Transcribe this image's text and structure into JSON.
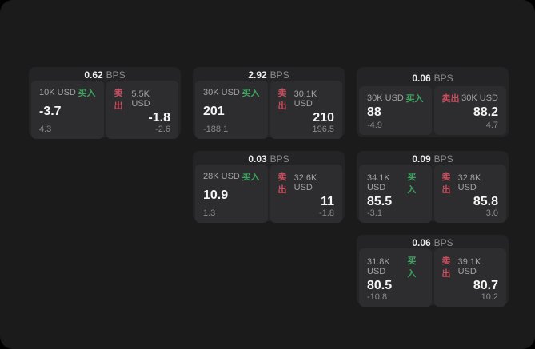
{
  "colors": {
    "buy_green": "#3da35f",
    "sell_red": "#c94f5f",
    "panel_bg": "#1b1b1c",
    "card_bg": "#242426",
    "subpanel_bg": "#2d2d2f"
  },
  "cards": [
    {
      "bps_value": "0.62",
      "bps_unit": "BPS",
      "buy": {
        "size": "10K USD",
        "label": "买入",
        "price": "-3.7",
        "change": "4.3"
      },
      "sell": {
        "label": "卖出",
        "size": "5.5K USD",
        "price": "-1.8",
        "change": "-2.6"
      }
    },
    {
      "bps_value": "2.92",
      "bps_unit": "BPS",
      "buy": {
        "size": "30K USD",
        "label": "买入",
        "price": "201",
        "change": "-188.1"
      },
      "sell": {
        "label": "卖出",
        "size": "30.1K USD",
        "price": "210",
        "change": "196.5"
      }
    },
    {
      "bps_value": "0.06",
      "bps_unit": "BPS",
      "buy": {
        "size": "30K USD",
        "label": "买入",
        "price": "88",
        "change": "-4.9"
      },
      "sell": {
        "label": "卖出",
        "size": "30K USD",
        "price": "88.2",
        "change": "4.7"
      }
    },
    {
      "bps_value": "0.03",
      "bps_unit": "BPS",
      "buy": {
        "size": "28K USD",
        "label": "买入",
        "price": "10.9",
        "change": "1.3"
      },
      "sell": {
        "label": "卖出",
        "size": "32.6K USD",
        "price": "11",
        "change": "-1.8"
      }
    },
    {
      "bps_value": "0.09",
      "bps_unit": "BPS",
      "buy": {
        "size": "34.1K USD",
        "label": "买入",
        "price": "85.5",
        "change": "-3.1"
      },
      "sell": {
        "label": "卖出",
        "size": "32.8K USD",
        "price": "85.8",
        "change": "3.0"
      }
    },
    {
      "bps_value": "0.06",
      "bps_unit": "BPS",
      "buy": {
        "size": "31.8K USD",
        "label": "买入",
        "price": "80.5",
        "change": "-10.8"
      },
      "sell": {
        "label": "卖出",
        "size": "39.1K USD",
        "price": "80.7",
        "change": "10.2"
      }
    }
  ]
}
